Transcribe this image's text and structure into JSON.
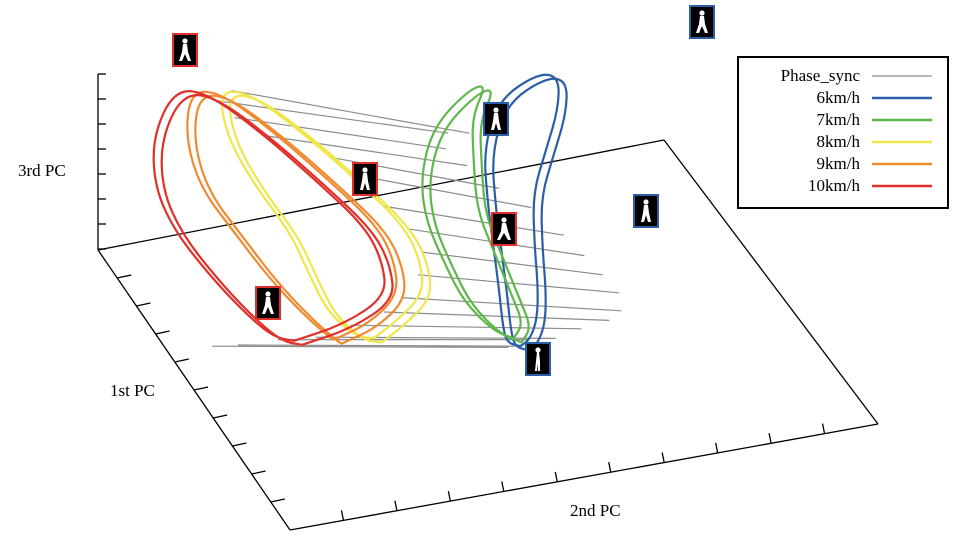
{
  "chart_data": {
    "type": "line",
    "projection": "3d",
    "xlabel": "1st PC",
    "ylabel": "2nd PC",
    "zlabel": "3rd PC",
    "grid": false,
    "legend_position": "top-right",
    "series": [
      {
        "name": "Phase_sync",
        "color": "#8c8c8c",
        "segments": [
          [
            [
              -0.35,
              0.3,
              0.52
            ],
            [
              0.22,
              0.55,
              0.5
            ]
          ],
          [
            [
              -0.33,
              0.27,
              0.5
            ],
            [
              0.22,
              0.52,
              0.5
            ]
          ],
          [
            [
              -0.32,
              0.3,
              0.46
            ],
            [
              0.2,
              0.52,
              0.46
            ]
          ],
          [
            [
              -0.3,
              0.34,
              0.42
            ],
            [
              0.2,
              0.55,
              0.42
            ]
          ],
          [
            [
              -0.22,
              0.42,
              0.38
            ],
            [
              0.3,
              0.58,
              0.38
            ]
          ],
          [
            [
              -0.18,
              0.46,
              0.34
            ],
            [
              0.34,
              0.62,
              0.34
            ]
          ],
          [
            [
              -0.1,
              0.48,
              0.28
            ],
            [
              0.38,
              0.66,
              0.28
            ]
          ],
          [
            [
              0.0,
              0.5,
              0.24
            ],
            [
              0.44,
              0.68,
              0.24
            ]
          ],
          [
            [
              0.1,
              0.5,
              0.2
            ],
            [
              0.48,
              0.7,
              0.2
            ]
          ],
          [
            [
              0.2,
              0.48,
              0.16
            ],
            [
              0.5,
              0.72,
              0.16
            ]
          ],
          [
            [
              0.3,
              0.44,
              0.12
            ],
            [
              0.52,
              0.72,
              0.12
            ]
          ],
          [
            [
              0.4,
              0.4,
              0.1
            ],
            [
              0.54,
              0.7,
              0.1
            ]
          ],
          [
            [
              0.48,
              0.34,
              0.08
            ],
            [
              0.54,
              0.66,
              0.08
            ]
          ],
          [
            [
              0.54,
              0.28,
              0.06
            ],
            [
              0.56,
              0.62,
              0.06
            ]
          ],
          [
            [
              0.58,
              0.22,
              0.06
            ],
            [
              0.58,
              0.58,
              0.06
            ]
          ],
          [
            [
              0.6,
              0.16,
              0.05
            ],
            [
              0.62,
              0.56,
              0.05
            ]
          ],
          [
            [
              0.62,
              0.12,
              0.05
            ],
            [
              0.64,
              0.54,
              0.05
            ]
          ]
        ]
      },
      {
        "name": "6km/h",
        "color": "#2a5fa8",
        "points": [
          [
            0.62,
            0.56,
            0.05
          ],
          [
            0.58,
            0.58,
            0.06
          ],
          [
            0.52,
            0.6,
            0.1
          ],
          [
            0.4,
            0.62,
            0.16
          ],
          [
            0.24,
            0.64,
            0.24
          ],
          [
            0.1,
            0.66,
            0.34
          ],
          [
            -0.04,
            0.7,
            0.42
          ],
          [
            -0.18,
            0.74,
            0.5
          ],
          [
            -0.3,
            0.76,
            0.56
          ],
          [
            -0.36,
            0.74,
            0.56
          ],
          [
            -0.34,
            0.68,
            0.5
          ],
          [
            -0.22,
            0.64,
            0.4
          ],
          [
            -0.06,
            0.62,
            0.3
          ],
          [
            0.12,
            0.6,
            0.22
          ],
          [
            0.3,
            0.58,
            0.14
          ],
          [
            0.46,
            0.56,
            0.08
          ],
          [
            0.56,
            0.55,
            0.05
          ],
          [
            0.62,
            0.56,
            0.05
          ]
        ]
      },
      {
        "name": "7km/h",
        "color": "#5db84a",
        "points": [
          [
            0.56,
            0.56,
            0.06
          ],
          [
            0.52,
            0.58,
            0.09
          ],
          [
            0.42,
            0.58,
            0.14
          ],
          [
            0.26,
            0.58,
            0.22
          ],
          [
            0.1,
            0.58,
            0.3
          ],
          [
            -0.06,
            0.6,
            0.4
          ],
          [
            -0.2,
            0.62,
            0.48
          ],
          [
            -0.32,
            0.66,
            0.54
          ],
          [
            -0.36,
            0.64,
            0.52
          ],
          [
            -0.3,
            0.58,
            0.44
          ],
          [
            -0.16,
            0.54,
            0.34
          ],
          [
            0.02,
            0.52,
            0.26
          ],
          [
            0.2,
            0.52,
            0.18
          ],
          [
            0.36,
            0.52,
            0.12
          ],
          [
            0.5,
            0.54,
            0.07
          ],
          [
            0.56,
            0.56,
            0.06
          ]
        ]
      },
      {
        "name": "8km/h",
        "color": "#f0e64a",
        "points": [
          [
            0.56,
            0.36,
            0.06
          ],
          [
            0.5,
            0.4,
            0.09
          ],
          [
            0.38,
            0.46,
            0.14
          ],
          [
            0.22,
            0.48,
            0.2
          ],
          [
            0.06,
            0.48,
            0.26
          ],
          [
            -0.08,
            0.44,
            0.34
          ],
          [
            -0.22,
            0.38,
            0.44
          ],
          [
            -0.32,
            0.32,
            0.52
          ],
          [
            -0.34,
            0.28,
            0.52
          ],
          [
            -0.26,
            0.28,
            0.42
          ],
          [
            -0.12,
            0.3,
            0.32
          ],
          [
            0.06,
            0.32,
            0.24
          ],
          [
            0.24,
            0.32,
            0.16
          ],
          [
            0.4,
            0.32,
            0.1
          ],
          [
            0.52,
            0.34,
            0.06
          ],
          [
            0.56,
            0.36,
            0.06
          ]
        ]
      },
      {
        "name": "9km/h",
        "color": "#f08a30",
        "points": [
          [
            0.58,
            0.3,
            0.06
          ],
          [
            0.52,
            0.36,
            0.09
          ],
          [
            0.4,
            0.42,
            0.14
          ],
          [
            0.24,
            0.44,
            0.2
          ],
          [
            0.08,
            0.44,
            0.26
          ],
          [
            -0.08,
            0.4,
            0.34
          ],
          [
            -0.22,
            0.34,
            0.44
          ],
          [
            -0.32,
            0.28,
            0.52
          ],
          [
            -0.34,
            0.24,
            0.52
          ],
          [
            -0.26,
            0.22,
            0.42
          ],
          [
            -0.12,
            0.22,
            0.32
          ],
          [
            0.06,
            0.24,
            0.24
          ],
          [
            0.24,
            0.26,
            0.16
          ],
          [
            0.42,
            0.28,
            0.1
          ],
          [
            0.54,
            0.3,
            0.06
          ],
          [
            0.58,
            0.3,
            0.06
          ]
        ]
      },
      {
        "name": "10km/h",
        "color": "#e0302a",
        "points": [
          [
            0.6,
            0.24,
            0.06
          ],
          [
            0.54,
            0.32,
            0.09
          ],
          [
            0.42,
            0.4,
            0.14
          ],
          [
            0.26,
            0.42,
            0.2
          ],
          [
            0.1,
            0.42,
            0.26
          ],
          [
            -0.06,
            0.38,
            0.34
          ],
          [
            -0.2,
            0.32,
            0.44
          ],
          [
            -0.32,
            0.26,
            0.52
          ],
          [
            -0.36,
            0.22,
            0.52
          ],
          [
            -0.3,
            0.18,
            0.42
          ],
          [
            -0.16,
            0.16,
            0.32
          ],
          [
            0.02,
            0.16,
            0.24
          ],
          [
            0.22,
            0.18,
            0.16
          ],
          [
            0.4,
            0.2,
            0.1
          ],
          [
            0.54,
            0.22,
            0.06
          ],
          [
            0.6,
            0.24,
            0.06
          ]
        ]
      }
    ]
  }
}
